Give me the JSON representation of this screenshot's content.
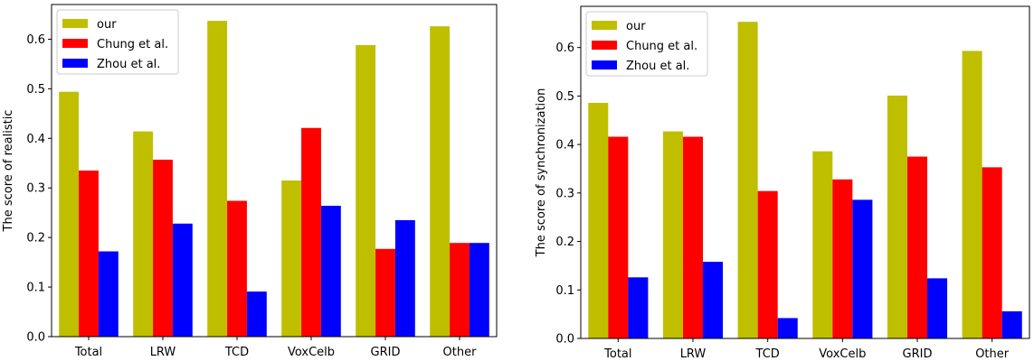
{
  "chart_data": [
    {
      "type": "bar",
      "categories": [
        "Total",
        "LRW",
        "TCD",
        "VoxCelb",
        "GRID",
        "Other"
      ],
      "ylabel": "The score of realistic",
      "ylim": [
        0,
        0.67
      ],
      "yticks": [
        "0.0",
        "0.1",
        "0.2",
        "0.3",
        "0.4",
        "0.5",
        "0.6"
      ],
      "legend_position": "top-left",
      "series": [
        {
          "name": "our",
          "color": "#bfbf00",
          "values": [
            0.494,
            0.414,
            0.637,
            0.315,
            0.588,
            0.626
          ]
        },
        {
          "name": "Chung et al.",
          "color": "#ff0000",
          "values": [
            0.335,
            0.357,
            0.274,
            0.421,
            0.177,
            0.189
          ]
        },
        {
          "name": "Zhou et al.",
          "color": "#0000ff",
          "values": [
            0.172,
            0.228,
            0.091,
            0.264,
            0.235,
            0.189
          ]
        }
      ]
    },
    {
      "type": "bar",
      "categories": [
        "Total",
        "LRW",
        "TCD",
        "VoxCelb",
        "GRID",
        "Other"
      ],
      "ylabel": "The score of synchronization",
      "ylim": [
        0,
        0.685
      ],
      "yticks": [
        "0.0",
        "0.1",
        "0.2",
        "0.3",
        "0.4",
        "0.5",
        "0.6"
      ],
      "legend_position": "top-left",
      "series": [
        {
          "name": "our",
          "color": "#bfbf00",
          "values": [
            0.486,
            0.427,
            0.653,
            0.386,
            0.501,
            0.593
          ]
        },
        {
          "name": "Chung et al.",
          "color": "#ff0000",
          "values": [
            0.416,
            0.416,
            0.304,
            0.328,
            0.375,
            0.353
          ]
        },
        {
          "name": "Zhou et al.",
          "color": "#0000ff",
          "values": [
            0.126,
            0.158,
            0.042,
            0.286,
            0.124,
            0.056
          ]
        }
      ]
    }
  ]
}
